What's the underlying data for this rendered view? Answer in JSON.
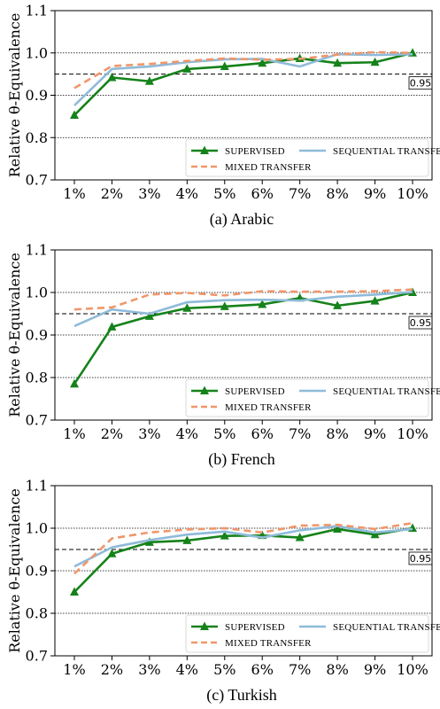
{
  "colors": {
    "supervised": "#15821a",
    "sequential": "#8fbbd9",
    "mixed": "#f0966a"
  },
  "chart_data": [
    {
      "type": "line",
      "caption": "(a) Arabic",
      "ylabel": "Relative θ-Equivalence",
      "ylim": [
        0.7,
        1.1
      ],
      "yticks": [
        "0.7",
        "0.8",
        "0.9",
        "1.0",
        "1.1"
      ],
      "categories": [
        "1%",
        "2%",
        "3%",
        "4%",
        "5%",
        "6%",
        "7%",
        "8%",
        "9%",
        "10%"
      ],
      "reference_line": {
        "value": 0.95,
        "label": "0.95"
      },
      "legend_position": "lower-right",
      "series": [
        {
          "name": "Supervised",
          "values": [
            0.853,
            0.942,
            0.933,
            0.962,
            0.968,
            0.976,
            0.987,
            0.976,
            0.978,
            1.0
          ]
        },
        {
          "name": "Sequential Transfer",
          "values": [
            0.876,
            0.962,
            0.968,
            0.978,
            0.985,
            0.986,
            0.968,
            0.997,
            0.995,
            0.997
          ]
        },
        {
          "name": "Mixed Transfer",
          "values": [
            0.917,
            0.969,
            0.974,
            0.981,
            0.987,
            0.984,
            0.986,
            0.996,
            1.002,
            1.0
          ]
        }
      ]
    },
    {
      "type": "line",
      "caption": "(b) French",
      "ylabel": "Relative θ-Equivalence",
      "ylim": [
        0.7,
        1.1
      ],
      "yticks": [
        "0.7",
        "0.8",
        "0.9",
        "1.0",
        "1.1"
      ],
      "categories": [
        "1%",
        "2%",
        "3%",
        "4%",
        "5%",
        "6%",
        "7%",
        "8%",
        "9%",
        "10%"
      ],
      "reference_line": {
        "value": 0.95,
        "label": "0.95"
      },
      "legend_position": "lower-right",
      "series": [
        {
          "name": "Supervised",
          "values": [
            0.785,
            0.919,
            0.944,
            0.963,
            0.967,
            0.972,
            0.987,
            0.969,
            0.98,
            1.0
          ]
        },
        {
          "name": "Sequential Transfer",
          "values": [
            0.921,
            0.96,
            0.95,
            0.977,
            0.982,
            0.983,
            0.981,
            0.99,
            0.995,
            1.001
          ]
        },
        {
          "name": "Mixed Transfer",
          "values": [
            0.96,
            0.965,
            0.995,
            0.999,
            0.993,
            1.003,
            1.002,
            1.002,
            1.003,
            1.007
          ]
        }
      ]
    },
    {
      "type": "line",
      "caption": "(c) Turkish",
      "ylabel": "Relative θ-Equivalence",
      "ylim": [
        0.7,
        1.1
      ],
      "yticks": [
        "0.7",
        "0.8",
        "0.9",
        "1.0",
        "1.1"
      ],
      "categories": [
        "1%",
        "2%",
        "3%",
        "4%",
        "5%",
        "6%",
        "7%",
        "8%",
        "9%",
        "10%"
      ],
      "reference_line": {
        "value": 0.95,
        "label": "0.95"
      },
      "legend_position": "lower-right",
      "series": [
        {
          "name": "Supervised",
          "values": [
            0.85,
            0.94,
            0.967,
            0.971,
            0.982,
            0.983,
            0.978,
            0.998,
            0.985,
            1.0
          ]
        },
        {
          "name": "Sequential Transfer",
          "values": [
            0.91,
            0.955,
            0.972,
            0.985,
            0.992,
            0.978,
            0.995,
            1.005,
            0.99,
            0.998
          ]
        },
        {
          "name": "Mixed Transfer",
          "values": [
            0.893,
            0.976,
            0.99,
            0.997,
            1.0,
            0.99,
            1.006,
            1.008,
            0.998,
            1.012
          ]
        }
      ]
    }
  ]
}
